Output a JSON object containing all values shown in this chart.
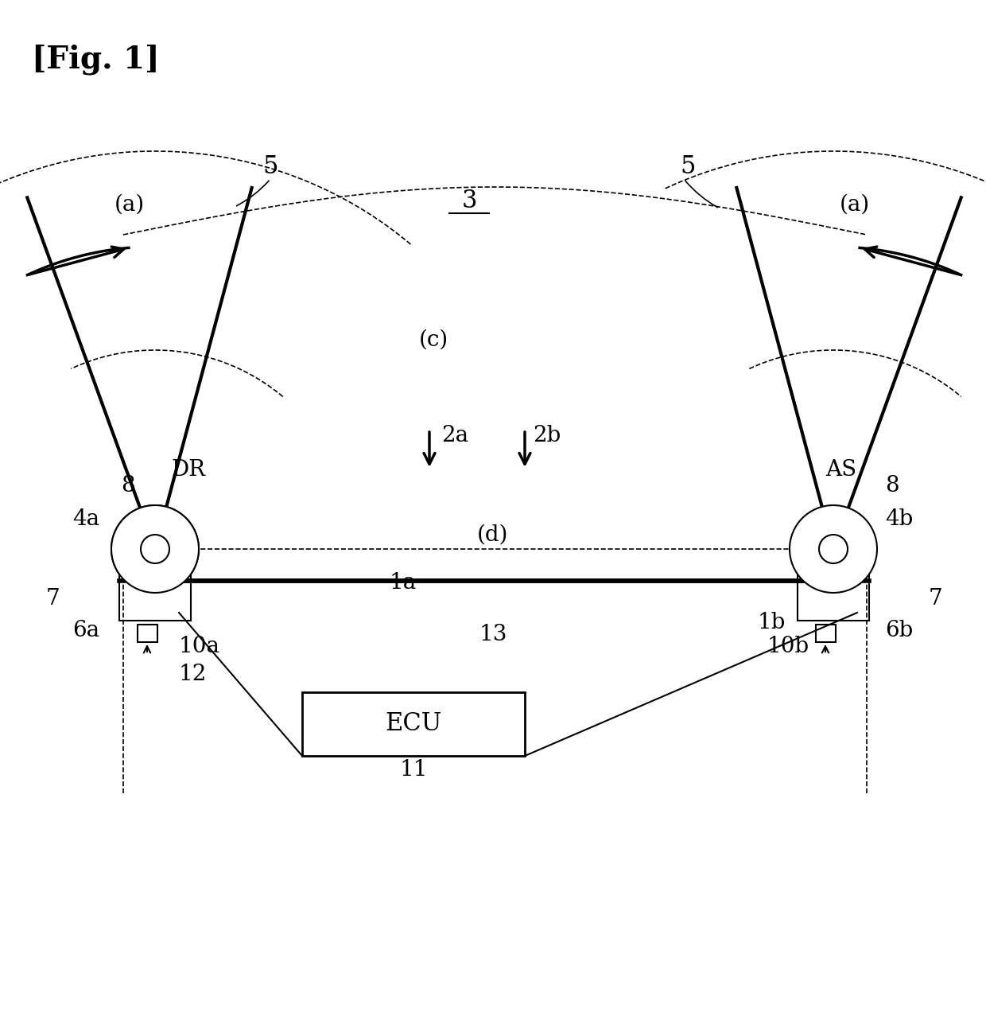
{
  "fig_label": "[Fig. 1]",
  "background": "#ffffff",
  "label_3": "3",
  "label_5_left": "5",
  "label_5_right": "5",
  "label_a_left": "(a)",
  "label_a_right": "(a)",
  "label_c": "(c)",
  "label_d": "(d)",
  "label_2a": "2a",
  "label_2b": "2b",
  "label_DR": "DR",
  "label_AS": "AS",
  "label_4a": "4a",
  "label_4b": "4b",
  "label_8_left": "8",
  "label_8_right": "8",
  "label_6a": "6a",
  "label_6b": "6b",
  "label_7_left": "7",
  "label_7_right": "7",
  "label_10a": "10a",
  "label_10b": "10b",
  "label_12": "12",
  "label_1a": "1a",
  "label_1b": "1b",
  "label_13": "13",
  "label_11": "11",
  "label_ECU": "ECU"
}
